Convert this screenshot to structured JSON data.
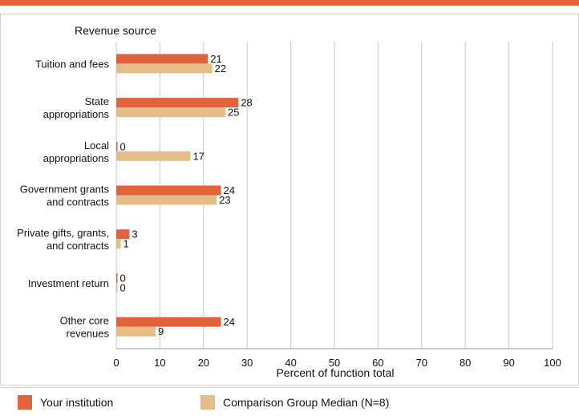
{
  "chart_data": {
    "type": "bar",
    "orientation": "horizontal",
    "title": "Revenue source",
    "xlabel": "Percent of function total",
    "xlim": [
      0,
      100
    ],
    "xticks": [
      0,
      10,
      20,
      30,
      40,
      50,
      60,
      70,
      80,
      90,
      100
    ],
    "grid": true,
    "legend_position": "bottom",
    "categories": [
      [
        "Tuition and fees"
      ],
      [
        "State",
        "appropriations"
      ],
      [
        "Local",
        "appropriations"
      ],
      [
        "Government grants",
        "and contracts"
      ],
      [
        "Private gifts, grants,",
        "and contracts"
      ],
      [
        "Investment return"
      ],
      [
        "Other core",
        "revenues"
      ]
    ],
    "series": [
      {
        "name": "Your institution",
        "color": "#e2623b",
        "values": [
          21,
          28,
          0,
          24,
          3,
          0,
          24
        ]
      },
      {
        "name": "Comparison Group Median (N=8)",
        "color": "#e5bd89",
        "values": [
          22,
          25,
          17,
          23,
          1,
          0,
          9
        ]
      }
    ]
  }
}
